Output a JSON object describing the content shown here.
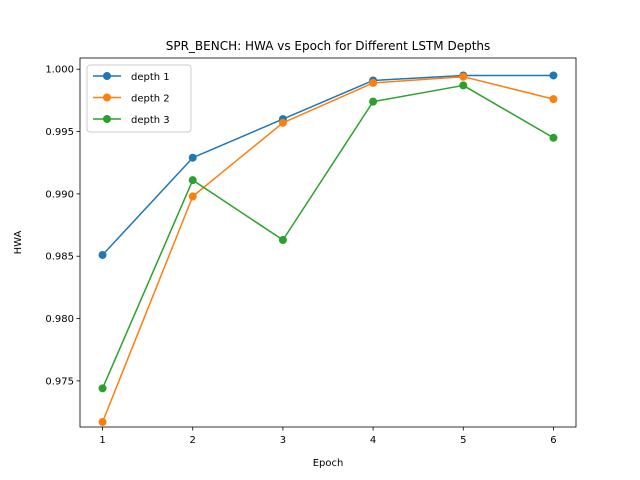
{
  "chart_data": {
    "type": "line",
    "title": "SPR_BENCH: HWA vs Epoch for Different LSTM Depths",
    "xlabel": "Epoch",
    "ylabel": "HWA",
    "x": [
      1,
      2,
      3,
      4,
      5,
      6
    ],
    "xlim": [
      0.75,
      6.25
    ],
    "ylim": [
      0.9713,
      1.0009
    ],
    "yticks": [
      0.975,
      0.98,
      0.985,
      0.99,
      0.995,
      1.0
    ],
    "ytick_labels": [
      "0.975",
      "0.980",
      "0.985",
      "0.990",
      "0.995",
      "1.000"
    ],
    "xtick_labels": [
      "1",
      "2",
      "3",
      "4",
      "5",
      "6"
    ],
    "grid": false,
    "legend_position": "top-left",
    "series": [
      {
        "name": "depth 1",
        "color": "#1f77b4",
        "values": [
          0.9851,
          0.9929,
          0.996,
          0.9991,
          0.9995,
          0.9995
        ]
      },
      {
        "name": "depth 2",
        "color": "#ff7f0e",
        "values": [
          0.9717,
          0.9898,
          0.9957,
          0.9989,
          0.9994,
          0.9976
        ]
      },
      {
        "name": "depth 3",
        "color": "#2ca02c",
        "values": [
          0.9744,
          0.9911,
          0.9863,
          0.9974,
          0.9987,
          0.9945
        ]
      }
    ]
  }
}
